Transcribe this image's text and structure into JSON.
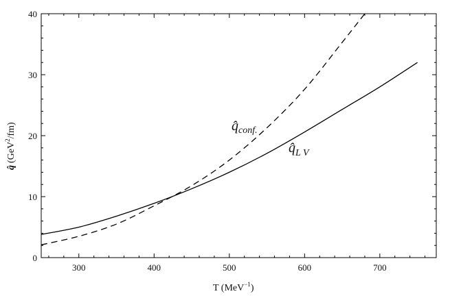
{
  "chart_data": {
    "type": "line",
    "xlabel": "T (MeV",
    "xlabel_sup": "−1",
    "xlabel_close": ")",
    "ylabel_symbol": "q̂",
    "ylabel_rest": "(GeV",
    "ylabel_sup": "2",
    "ylabel_close": "/fm)",
    "xlim": [
      250,
      775
    ],
    "ylim": [
      0,
      40
    ],
    "xticks": [
      300,
      400,
      500,
      600,
      700
    ],
    "yticks": [
      0,
      10,
      20,
      30,
      40
    ],
    "grid": false,
    "series": [
      {
        "name": "q̂_LV",
        "label_main": "q̂",
        "label_sub": "L V",
        "style": "solid",
        "color": "#000000",
        "x": [
          250,
          300,
          350,
          400,
          450,
          500,
          550,
          600,
          650,
          700,
          750
        ],
        "y": [
          3.8,
          5.0,
          6.8,
          8.9,
          11.3,
          14.0,
          17.1,
          20.6,
          24.3,
          28.0,
          32.0
        ]
      },
      {
        "name": "q̂_conf.",
        "label_main": "q̂",
        "label_sub": "conf.",
        "style": "dashed",
        "color": "#000000",
        "x": [
          250,
          300,
          350,
          400,
          450,
          500,
          550,
          600,
          650,
          680
        ],
        "y": [
          2.1,
          3.5,
          5.5,
          8.5,
          11.8,
          16.0,
          21.3,
          27.6,
          35.3,
          40.0
        ]
      }
    ]
  }
}
